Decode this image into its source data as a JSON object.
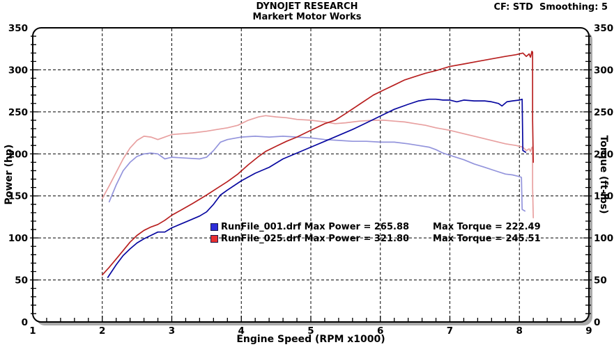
{
  "header": {
    "title": "DYNOJET RESEARCH",
    "subtitle": "Markert Motor Works",
    "correction_info": "CF: STD  Smoothing: 5"
  },
  "colors": {
    "background": "#ffffff",
    "frame": "#000000",
    "shadow": "#a9a9a9",
    "grid": "#000000",
    "power_run001": "#0808a0",
    "power_run025": "#b82020",
    "torque_run001": "#9394dc",
    "torque_run025": "#e8a0a0"
  },
  "chart_data": {
    "type": "line",
    "title": "DYNOJET RESEARCH - Markert Motor Works",
    "xlabel": "Engine Speed (RPM x1000)",
    "ylabel_left": "Power (hp)",
    "ylabel_right": "Torque (ft-lbs)",
    "xlim": [
      1,
      9
    ],
    "ylim_left": [
      0,
      350
    ],
    "ylim_right": [
      0,
      350
    ],
    "x_ticks": [
      1,
      2,
      3,
      4,
      5,
      6,
      7,
      8,
      9
    ],
    "y_ticks_left": [
      0,
      50,
      100,
      150,
      200,
      250,
      300,
      350
    ],
    "y_ticks_right": [
      0,
      50,
      100,
      150,
      200,
      250,
      300,
      350
    ],
    "x_minor_step": 0.2,
    "y_minor_step": 10,
    "grid": {
      "style": "dashed",
      "x_lines": [
        2,
        3,
        4,
        5,
        6,
        7,
        8
      ],
      "y_lines": [
        50,
        100,
        150,
        200,
        250,
        300
      ]
    },
    "series": [
      {
        "key": "runfile-001-torque-curve",
        "name": "RunFile_001.drf Torque (ft-lbs)",
        "axis": "right",
        "color": "#9394dc",
        "width": 1.7,
        "points": [
          [
            2.1,
            143
          ],
          [
            2.2,
            163
          ],
          [
            2.3,
            180
          ],
          [
            2.4,
            190
          ],
          [
            2.5,
            197
          ],
          [
            2.6,
            200
          ],
          [
            2.7,
            201
          ],
          [
            2.8,
            200
          ],
          [
            2.9,
            194
          ],
          [
            3.0,
            196
          ],
          [
            3.2,
            195
          ],
          [
            3.4,
            194
          ],
          [
            3.5,
            196
          ],
          [
            3.6,
            204
          ],
          [
            3.7,
            214
          ],
          [
            3.8,
            217
          ],
          [
            4.0,
            220
          ],
          [
            4.2,
            221
          ],
          [
            4.4,
            220
          ],
          [
            4.6,
            221
          ],
          [
            4.8,
            220
          ],
          [
            5.0,
            219
          ],
          [
            5.2,
            217
          ],
          [
            5.4,
            216
          ],
          [
            5.6,
            215
          ],
          [
            5.8,
            215
          ],
          [
            6.0,
            214
          ],
          [
            6.2,
            214
          ],
          [
            6.4,
            212
          ],
          [
            6.55,
            210
          ],
          [
            6.7,
            208
          ],
          [
            6.8,
            205
          ],
          [
            6.9,
            201
          ],
          [
            7.05,
            197
          ],
          [
            7.2,
            193
          ],
          [
            7.35,
            188
          ],
          [
            7.5,
            184
          ],
          [
            7.65,
            180
          ],
          [
            7.8,
            176
          ],
          [
            7.9,
            175
          ],
          [
            8.0,
            173
          ],
          [
            8.03,
            172
          ],
          [
            8.04,
            134
          ],
          [
            8.08,
            132
          ]
        ]
      },
      {
        "key": "runfile-025-torque-curve",
        "name": "RunFile_025.drf Torque (ft-lbs)",
        "axis": "right",
        "color": "#e8a0a0",
        "width": 1.7,
        "points": [
          [
            2.0,
            147
          ],
          [
            2.1,
            162
          ],
          [
            2.2,
            178
          ],
          [
            2.3,
            194
          ],
          [
            2.4,
            207
          ],
          [
            2.5,
            216
          ],
          [
            2.6,
            221
          ],
          [
            2.7,
            220
          ],
          [
            2.8,
            217
          ],
          [
            2.9,
            220
          ],
          [
            3.0,
            223
          ],
          [
            3.15,
            224
          ],
          [
            3.3,
            225
          ],
          [
            3.5,
            227
          ],
          [
            3.65,
            229
          ],
          [
            3.8,
            231
          ],
          [
            3.95,
            234
          ],
          [
            4.1,
            240
          ],
          [
            4.25,
            244
          ],
          [
            4.35,
            245.5
          ],
          [
            4.5,
            244
          ],
          [
            4.65,
            243
          ],
          [
            4.8,
            241
          ],
          [
            5.0,
            240
          ],
          [
            5.2,
            238
          ],
          [
            5.35,
            236
          ],
          [
            5.5,
            237
          ],
          [
            5.7,
            239
          ],
          [
            5.9,
            240
          ],
          [
            6.05,
            240
          ],
          [
            6.2,
            239
          ],
          [
            6.35,
            238
          ],
          [
            6.5,
            236
          ],
          [
            6.65,
            234
          ],
          [
            6.8,
            231
          ],
          [
            7.0,
            228
          ],
          [
            7.2,
            224
          ],
          [
            7.4,
            220
          ],
          [
            7.6,
            216
          ],
          [
            7.8,
            212
          ],
          [
            7.95,
            210
          ],
          [
            8.05,
            208
          ],
          [
            8.1,
            204
          ],
          [
            8.14,
            206
          ],
          [
            8.16,
            203
          ],
          [
            8.18,
            208
          ],
          [
            8.19,
            207
          ],
          [
            8.19,
            160
          ],
          [
            8.2,
            124
          ]
        ]
      },
      {
        "key": "runfile-001-power-curve",
        "name": "RunFile_001.drf Power (hp)",
        "axis": "left",
        "color": "#0808a0",
        "width": 1.7,
        "points": [
          [
            2.08,
            53
          ],
          [
            2.2,
            68
          ],
          [
            2.3,
            79
          ],
          [
            2.4,
            87
          ],
          [
            2.5,
            94
          ],
          [
            2.6,
            99
          ],
          [
            2.7,
            103
          ],
          [
            2.8,
            107
          ],
          [
            2.9,
            107
          ],
          [
            3.0,
            112
          ],
          [
            3.2,
            119
          ],
          [
            3.4,
            126
          ],
          [
            3.5,
            131
          ],
          [
            3.6,
            140
          ],
          [
            3.7,
            151
          ],
          [
            3.8,
            157
          ],
          [
            4.0,
            168
          ],
          [
            4.2,
            177
          ],
          [
            4.4,
            184
          ],
          [
            4.6,
            194
          ],
          [
            4.8,
            201
          ],
          [
            5.0,
            208
          ],
          [
            5.2,
            215
          ],
          [
            5.4,
            222
          ],
          [
            5.6,
            229
          ],
          [
            5.8,
            237
          ],
          [
            6.0,
            245
          ],
          [
            6.2,
            253
          ],
          [
            6.4,
            259
          ],
          [
            6.55,
            263
          ],
          [
            6.7,
            265
          ],
          [
            6.8,
            265
          ],
          [
            6.9,
            264
          ],
          [
            7.0,
            264
          ],
          [
            7.1,
            262
          ],
          [
            7.2,
            264
          ],
          [
            7.35,
            263
          ],
          [
            7.5,
            263
          ],
          [
            7.6,
            262
          ],
          [
            7.7,
            260
          ],
          [
            7.75,
            257
          ],
          [
            7.82,
            262
          ],
          [
            7.9,
            263
          ],
          [
            8.0,
            264
          ],
          [
            8.04,
            265
          ],
          [
            8.05,
            204
          ],
          [
            8.09,
            202
          ]
        ]
      },
      {
        "key": "runfile-025-power-curve",
        "name": "RunFile_025.drf Power (hp)",
        "axis": "left",
        "color": "#b82020",
        "width": 1.7,
        "points": [
          [
            2.0,
            56
          ],
          [
            2.1,
            65
          ],
          [
            2.2,
            75
          ],
          [
            2.3,
            85
          ],
          [
            2.4,
            95
          ],
          [
            2.5,
            103
          ],
          [
            2.6,
            109
          ],
          [
            2.7,
            113
          ],
          [
            2.8,
            116
          ],
          [
            2.9,
            121
          ],
          [
            3.0,
            127
          ],
          [
            3.15,
            134
          ],
          [
            3.3,
            141
          ],
          [
            3.5,
            151
          ],
          [
            3.65,
            159
          ],
          [
            3.8,
            167
          ],
          [
            3.95,
            176
          ],
          [
            4.1,
            187
          ],
          [
            4.25,
            197
          ],
          [
            4.35,
            203
          ],
          [
            4.5,
            209
          ],
          [
            4.65,
            215
          ],
          [
            4.8,
            220
          ],
          [
            5.0,
            228
          ],
          [
            5.2,
            236
          ],
          [
            5.35,
            240
          ],
          [
            5.5,
            248
          ],
          [
            5.7,
            259
          ],
          [
            5.9,
            270
          ],
          [
            6.05,
            276
          ],
          [
            6.2,
            282
          ],
          [
            6.35,
            288
          ],
          [
            6.5,
            292
          ],
          [
            6.65,
            296
          ],
          [
            6.8,
            299
          ],
          [
            7.0,
            304
          ],
          [
            7.2,
            307
          ],
          [
            7.4,
            310
          ],
          [
            7.6,
            313
          ],
          [
            7.8,
            316
          ],
          [
            7.95,
            318
          ],
          [
            8.05,
            320
          ],
          [
            8.1,
            316
          ],
          [
            8.14,
            319
          ],
          [
            8.16,
            315
          ],
          [
            8.18,
            322
          ],
          [
            8.19,
            321
          ],
          [
            8.19,
            240
          ],
          [
            8.2,
            190
          ]
        ]
      }
    ],
    "legend": {
      "position": "inside-lower-center",
      "entries": [
        {
          "file": "RunFile_001.drf",
          "max_power": 265.88,
          "max_torque": 222.49,
          "marker_color": "#2d2dd9",
          "power_text": "RunFile_001.drf Max Power = 265.88",
          "torque_text": "Max Torque = 222.49"
        },
        {
          "file": "RunFile_025.drf",
          "max_power": 321.8,
          "max_torque": 245.51,
          "marker_color": "#e83030",
          "power_text": "RunFile_025.drf Max Power = 321.80",
          "torque_text": "Max Torque = 245.51"
        }
      ]
    }
  }
}
